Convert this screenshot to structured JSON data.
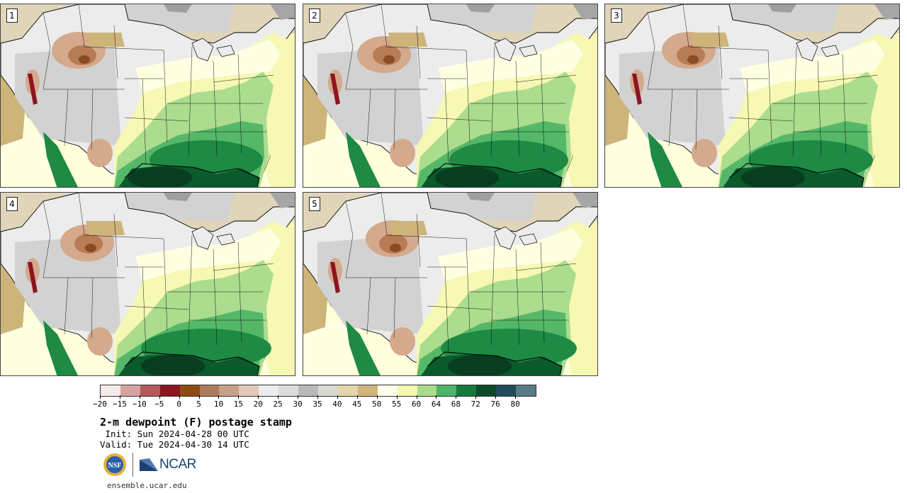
{
  "panels": [
    {
      "label": "1",
      "variant": 0
    },
    {
      "label": "2",
      "variant": 1
    },
    {
      "label": "3",
      "variant": 2
    },
    {
      "label": "4",
      "variant": 3
    },
    {
      "label": "5",
      "variant": 4
    }
  ],
  "colorbar": {
    "colors": [
      "#f6ebeb",
      "#d8a2a2",
      "#b45a5a",
      "#8c1520",
      "#8e4a10",
      "#b07a5a",
      "#c8a088",
      "#e2c9b7",
      "#ececec",
      "#dcdcdc",
      "#b9b9b9",
      "#d9d9d0",
      "#e3d7aa",
      "#d0b67a",
      "#ffffec",
      "#f6f8b0",
      "#a9dc8c",
      "#4eb466",
      "#147a3c",
      "#0b4a28",
      "#204c5c",
      "#567c86"
    ],
    "tick_labels": [
      "-20",
      "-15",
      "-10",
      "-5",
      "0",
      "5",
      "10",
      "15",
      "20",
      "25",
      "30",
      "35",
      "40",
      "45",
      "50",
      "55",
      "60",
      "64",
      "68",
      "72",
      "76",
      "80"
    ]
  },
  "title": "2-m dewpoint (F) postage stamp",
  "init": " Init: Sun 2024-04-28 00 UTC",
  "valid": "Valid: Tue 2024-04-30 14 UTC",
  "logos": {
    "nsf_text": "NSF",
    "ncar_text": "NCAR"
  },
  "footer_url": "ensemble.ucar.edu"
}
